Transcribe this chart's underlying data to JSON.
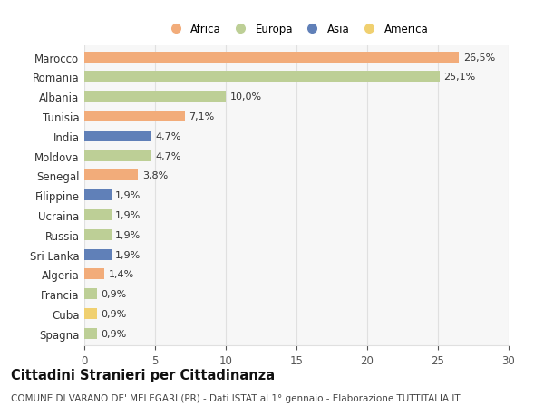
{
  "countries": [
    "Marocco",
    "Romania",
    "Albania",
    "Tunisia",
    "India",
    "Moldova",
    "Senegal",
    "Filippine",
    "Ucraina",
    "Russia",
    "Sri Lanka",
    "Algeria",
    "Francia",
    "Cuba",
    "Spagna"
  ],
  "values": [
    26.5,
    25.1,
    10.0,
    7.1,
    4.7,
    4.7,
    3.8,
    1.9,
    1.9,
    1.9,
    1.9,
    1.4,
    0.9,
    0.9,
    0.9
  ],
  "labels": [
    "26,5%",
    "25,1%",
    "10,0%",
    "7,1%",
    "4,7%",
    "4,7%",
    "3,8%",
    "1,9%",
    "1,9%",
    "1,9%",
    "1,9%",
    "1,4%",
    "0,9%",
    "0,9%",
    "0,9%"
  ],
  "continents": [
    "Africa",
    "Europa",
    "Europa",
    "Africa",
    "Asia",
    "Europa",
    "Africa",
    "Asia",
    "Europa",
    "Europa",
    "Asia",
    "Africa",
    "Europa",
    "America",
    "Europa"
  ],
  "continent_colors": {
    "Africa": "#F2AC7A",
    "Europa": "#BDCF96",
    "Asia": "#6080B8",
    "America": "#F0D070"
  },
  "legend_order": [
    "Africa",
    "Europa",
    "Asia",
    "America"
  ],
  "xlim": [
    0,
    30
  ],
  "xticks": [
    0,
    5,
    10,
    15,
    20,
    25,
    30
  ],
  "title": "Cittadini Stranieri per Cittadinanza",
  "subtitle": "COMUNE DI VARANO DE' MELEGARI (PR) - Dati ISTAT al 1° gennaio - Elaborazione TUTTITALIA.IT",
  "background_color": "#ffffff",
  "plot_background": "#f7f7f7",
  "bar_height": 0.55,
  "grid_color": "#e0e0e0",
  "label_fontsize": 8,
  "tick_fontsize": 8.5,
  "title_fontsize": 10.5,
  "subtitle_fontsize": 7.5
}
